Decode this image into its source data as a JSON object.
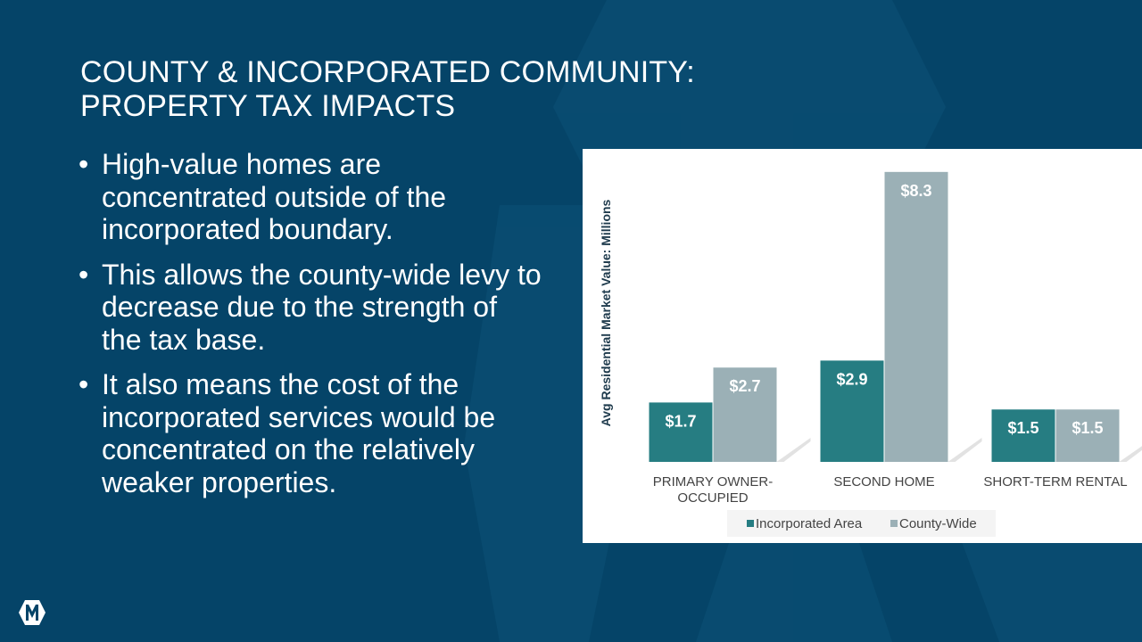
{
  "slide": {
    "title_lines": [
      "COUNTY & INCORPORATED COMMUNITY:",
      "PROPERTY TAX IMPACTS"
    ],
    "bullets": [
      "High-value homes are concentrated outside of the incorporated boundary.",
      "This allows the county-wide levy to decrease due to the strength of the tax base.",
      "It also means the cost of the incorporated services would be concentrated on the relatively weaker properties."
    ],
    "bullet_glyph": "•",
    "background_color": "#054468",
    "logo_icon": "county-logo-icon"
  },
  "chart_data": {
    "type": "bar",
    "categories": [
      "PRIMARY OWNER-OCCUPIED",
      "SECOND HOME",
      "SHORT-TERM RENTAL"
    ],
    "category_label_lines": [
      [
        "PRIMARY OWNER-",
        "OCCUPIED"
      ],
      [
        "SECOND HOME"
      ],
      [
        "SHORT-TERM RENTAL"
      ]
    ],
    "series": [
      {
        "name": "Incorporated Area",
        "values": [
          1.7,
          2.9,
          1.5
        ],
        "labels": [
          "$1.7",
          "$2.9",
          "$1.5"
        ],
        "color": "#267d82"
      },
      {
        "name": "County-Wide",
        "values": [
          2.7,
          8.3,
          1.5
        ],
        "labels": [
          "$2.7",
          "$8.3",
          "$1.5"
        ],
        "color": "#9bb0b6"
      }
    ],
    "title": "",
    "xlabel": "",
    "ylabel": "Avg Residential Market Value: Millions",
    "ylim": [
      0,
      8.5
    ],
    "grid": false,
    "legend": "bottom",
    "data_labels": "inside-top"
  }
}
